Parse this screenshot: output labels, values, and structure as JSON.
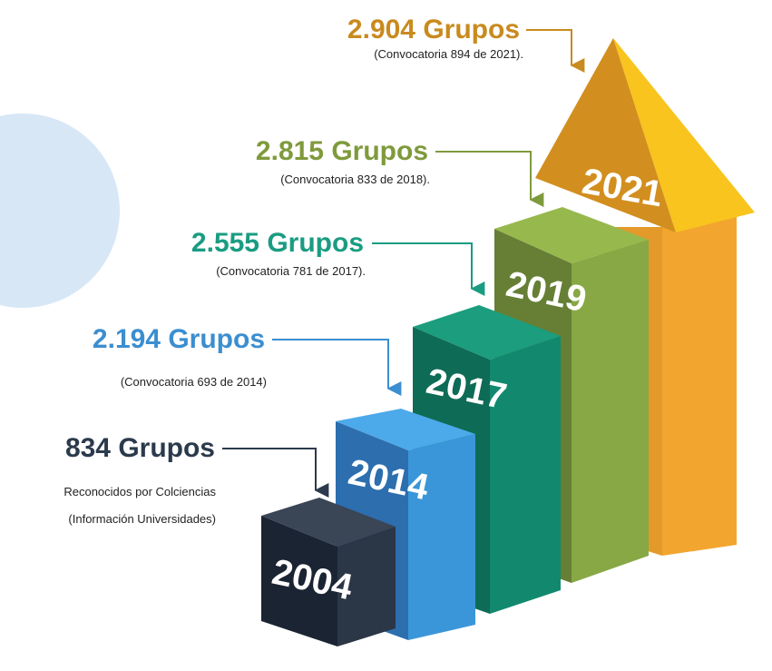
{
  "steps": [
    {
      "year": "2004",
      "groups": "834 Grupos",
      "notes": [
        "Reconocidos por Colciencias",
        "(Información Universidades)"
      ]
    },
    {
      "year": "2014",
      "groups": "2.194 Grupos",
      "notes": [
        "(Convocatoria 693 de 2014)"
      ]
    },
    {
      "year": "2017",
      "groups": "2.555 Grupos",
      "notes": [
        "(Convocatoria 781 de 2017)."
      ]
    },
    {
      "year": "2019",
      "groups": "2.815 Grupos",
      "notes": [
        "(Convocatoria 833 de 2018)."
      ]
    },
    {
      "year": "2021",
      "groups": "2.904 Grupos",
      "notes": [
        "(Convocatoria 894 de 2021)."
      ]
    }
  ]
}
